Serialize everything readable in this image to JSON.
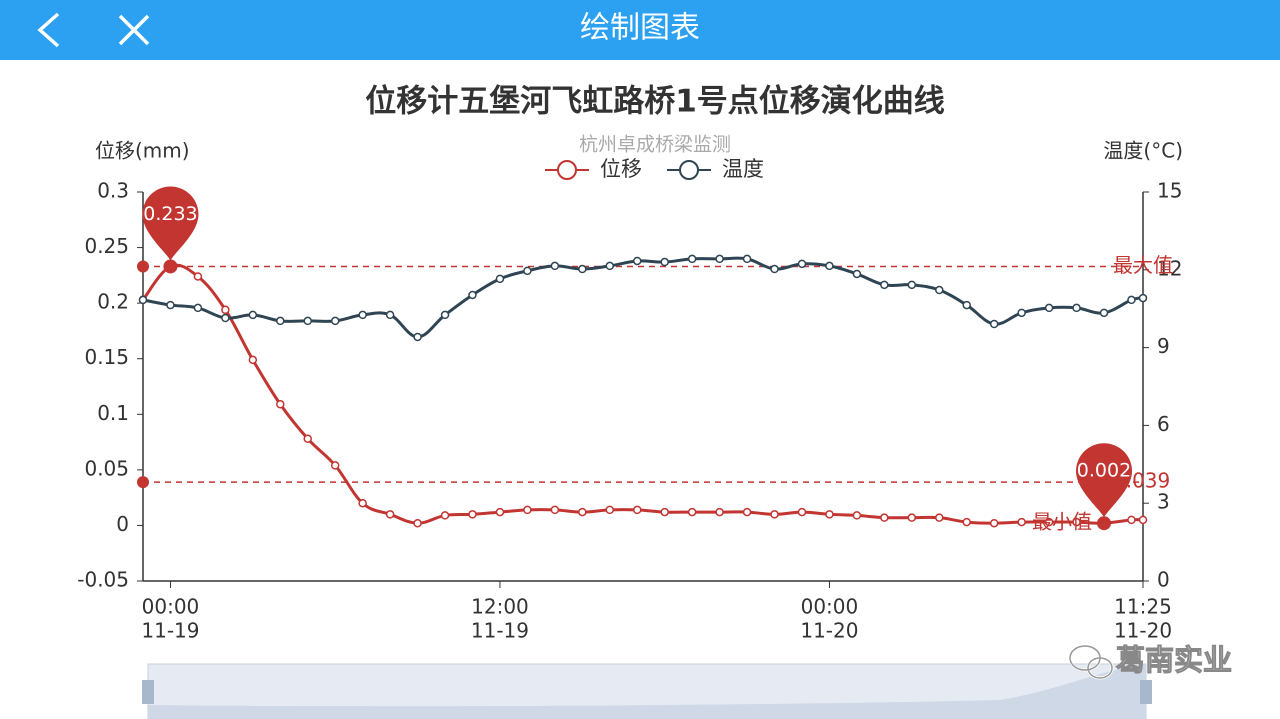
{
  "header": {
    "title": "绘制图表"
  },
  "chart_data": {
    "type": "line",
    "title": "位移计五堡河飞虹路桥1号点位移演化曲线",
    "subtitle": "杭州卓成桥梁监测",
    "y_label": "位移(mm)",
    "y2_label": "温度(°C)",
    "x": [
      -1,
      0,
      1,
      2,
      3,
      4,
      5,
      6,
      7,
      8,
      9,
      10,
      11,
      12,
      13,
      14,
      15,
      16,
      17,
      18,
      19,
      20,
      21,
      22,
      23,
      24,
      25,
      26,
      27,
      28,
      29,
      30,
      31,
      32,
      33,
      34,
      35,
      35.42
    ],
    "xlim": [
      -1,
      35.42
    ],
    "xticks": [
      {
        "value": 0,
        "label": "00:00",
        "date": "11-19"
      },
      {
        "value": 12,
        "label": "12:00",
        "date": "11-19"
      },
      {
        "value": 24,
        "label": "00:00",
        "date": "11-20"
      },
      {
        "value": 35.42,
        "label": "11:25",
        "date": "11-20"
      }
    ],
    "ylim": [
      -0.05,
      0.3
    ],
    "yticks": [
      -0.05,
      0,
      0.05,
      0.1,
      0.15,
      0.2,
      0.25,
      0.3
    ],
    "y2lim": [
      0,
      15
    ],
    "y2ticks": [
      0,
      3,
      6,
      9,
      12,
      15
    ],
    "series": [
      {
        "name": "位移",
        "color": "#c23531",
        "values": [
          0.203,
          0.233,
          0.224,
          0.194,
          0.149,
          0.109,
          0.078,
          0.054,
          0.02,
          0.01,
          0.002,
          0.009,
          0.01,
          0.012,
          0.014,
          0.014,
          0.012,
          0.014,
          0.014,
          0.012,
          0.012,
          0.012,
          0.012,
          0.01,
          0.012,
          0.01,
          0.009,
          0.007,
          0.007,
          0.007,
          0.003,
          0.002,
          0.003,
          0.003,
          0.003,
          0.002,
          0.005,
          0.005
        ]
      },
      {
        "name": "温度",
        "color": "#2f4554",
        "axis": "y2",
        "values": [
          10.84,
          10.64,
          10.53,
          10.14,
          10.26,
          10.03,
          10.03,
          10.03,
          10.26,
          10.26,
          9.41,
          10.26,
          11.03,
          11.65,
          11.96,
          12.15,
          12.03,
          12.15,
          12.34,
          12.3,
          12.42,
          12.42,
          12.42,
          12.03,
          12.23,
          12.15,
          11.84,
          11.42,
          11.42,
          11.22,
          10.64,
          9.91,
          10.34,
          10.53,
          10.53,
          10.34,
          10.84,
          10.91
        ]
      }
    ],
    "mark_points": [
      {
        "x": 0,
        "value": 0.233
      },
      {
        "x": 34,
        "value": 0.002,
        "label": "最小值"
      }
    ],
    "mark_lines": [
      {
        "value": 0.233,
        "label": "最大值"
      },
      {
        "value": 0.039
      }
    ],
    "legend": "top",
    "grid": false
  },
  "watermark": "葛南实业"
}
